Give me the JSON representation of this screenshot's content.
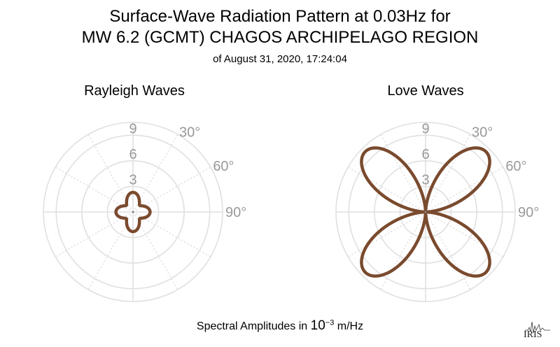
{
  "title_line1": "Surface-Wave Radiation Pattern at 0.03Hz for",
  "title_line2": "MW 6.2 (GCMT) CHAGOS ARCHIPELAGO REGION",
  "subtitle": "of August 31, 2020, 17:24:04",
  "footer": {
    "prefix": "Spectral Amplitudes in ",
    "base": "10",
    "exponent": "−3",
    "unit": " m/Hz"
  },
  "logo_text": "IRIS",
  "colors": {
    "pattern": "#7a4a2e",
    "grid": "#e0e0e0",
    "label": "#999999"
  },
  "chart_data": [
    {
      "type": "polar",
      "title": "Rayleigh Waves",
      "r_ticks": [
        "3",
        "6",
        "9"
      ],
      "rmax": 10.5,
      "angle_labels": [
        "30°",
        "60°",
        "90°"
      ],
      "pattern": "four-lobe",
      "lobes": {
        "azimuths_deg": [
          0,
          90,
          180,
          270
        ],
        "amplitudes": [
          2.3,
          2.0,
          2.3,
          2.0
        ],
        "min_amplitude": 1.1
      }
    },
    {
      "type": "polar",
      "title": "Love Waves",
      "r_ticks": [
        "3",
        "6",
        "9"
      ],
      "rmax": 10.5,
      "angle_labels": [
        "30°",
        "60°",
        "90°"
      ],
      "pattern": "four-lobe",
      "lobes": {
        "azimuths_deg": [
          45,
          135,
          225,
          315
        ],
        "amplitudes": [
          10.0,
          10.0,
          10.0,
          10.0
        ],
        "min_amplitude": 0.1
      }
    }
  ]
}
